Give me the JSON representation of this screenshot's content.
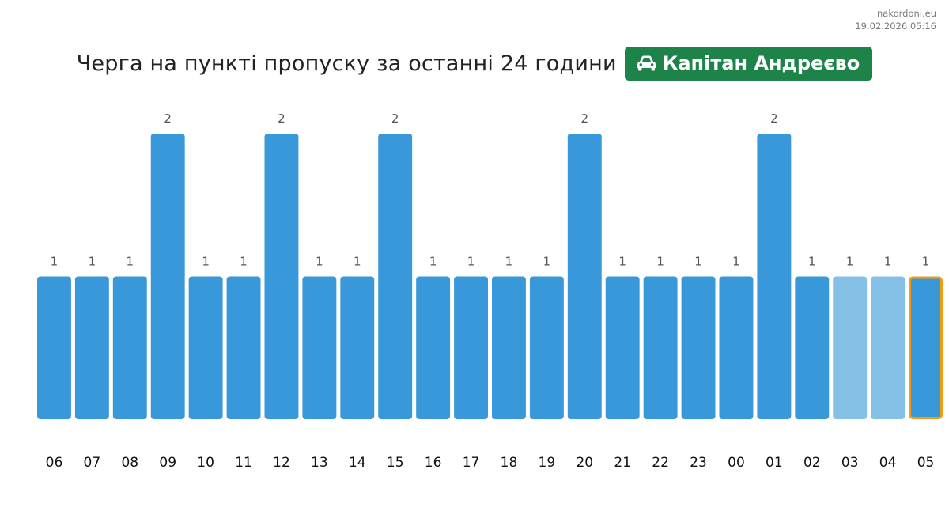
{
  "site": {
    "name": "nakordoni.eu",
    "timestamp": "19.02.2026 05:16"
  },
  "header": {
    "title": "Черга на пункті пропуску за останні 24 години",
    "checkpoint": "Капітан Андреєво",
    "checkpoint_icon": "car-icon"
  },
  "colors": {
    "bar": "#3898da",
    "bar_light": "#85c0e7",
    "highlight_border": "#f39c12",
    "badge": "#1d8348",
    "value_label": "#555555",
    "tick_label": "#111111"
  },
  "chart_data": {
    "type": "bar",
    "categories": [
      "06",
      "07",
      "08",
      "09",
      "10",
      "11",
      "12",
      "13",
      "14",
      "15",
      "16",
      "17",
      "18",
      "19",
      "20",
      "21",
      "22",
      "23",
      "00",
      "01",
      "02",
      "03",
      "04",
      "05"
    ],
    "values": [
      1,
      1,
      1,
      2,
      1,
      1,
      2,
      1,
      1,
      2,
      1,
      1,
      1,
      1,
      2,
      1,
      1,
      1,
      1,
      2,
      1,
      1,
      1,
      1
    ],
    "value_labels": [
      "1",
      "1",
      "1",
      "2",
      "1",
      "1",
      "2",
      "1",
      "1",
      "2",
      "1",
      "1",
      "1",
      "1",
      "2",
      "1",
      "1",
      "1",
      "1",
      "2",
      "1",
      "1",
      "1",
      "1"
    ],
    "light_categories": [
      "03",
      "04"
    ],
    "highlighted_category": "05",
    "ylim": [
      0,
      2
    ],
    "grid": false,
    "legend": "none"
  }
}
